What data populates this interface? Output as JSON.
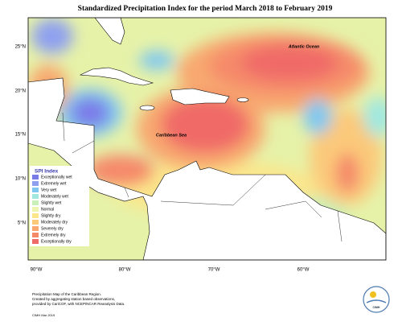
{
  "title": "Standardized Precipitation Index for the period March 2018 to February 2019",
  "map": {
    "labels": [
      "Atlantic Ocean",
      "Caribbean Sea"
    ],
    "lat_ticks": [
      "25°N",
      "20°N",
      "15°N",
      "10°N",
      "5°N"
    ],
    "lon_ticks": [
      "90°W",
      "80°W",
      "70°W",
      "60°W"
    ]
  },
  "legend": {
    "title": "SPI Index",
    "items": [
      {
        "name": "Exceptionally wet",
        "color": "#7b7be8"
      },
      {
        "name": "Extremely wet",
        "color": "#8fa0f0"
      },
      {
        "name": "Very wet",
        "color": "#80c8f0"
      },
      {
        "name": "Moderately wet",
        "color": "#a0e8e0"
      },
      {
        "name": "Slightly wet",
        "color": "#c8f0b8"
      },
      {
        "name": "Normal",
        "color": "#eef5b0"
      },
      {
        "name": "Slightly dry",
        "color": "#fbe68c"
      },
      {
        "name": "Moderately dry",
        "color": "#fbc97a"
      },
      {
        "name": "Severely dry",
        "color": "#f8a870"
      },
      {
        "name": "Extremely dry",
        "color": "#f58a6a"
      },
      {
        "name": "Exceptionally dry",
        "color": "#f06a68"
      }
    ]
  },
  "footer": {
    "note": [
      "Precipitation Map of the Caribbean Region.",
      "Created by aggregating station based observations,",
      "provided by CariCOF, with NCEP/NCAR Reanalysis Data."
    ],
    "credit": "CIMH Mar 2019",
    "logo": "CIMH"
  }
}
